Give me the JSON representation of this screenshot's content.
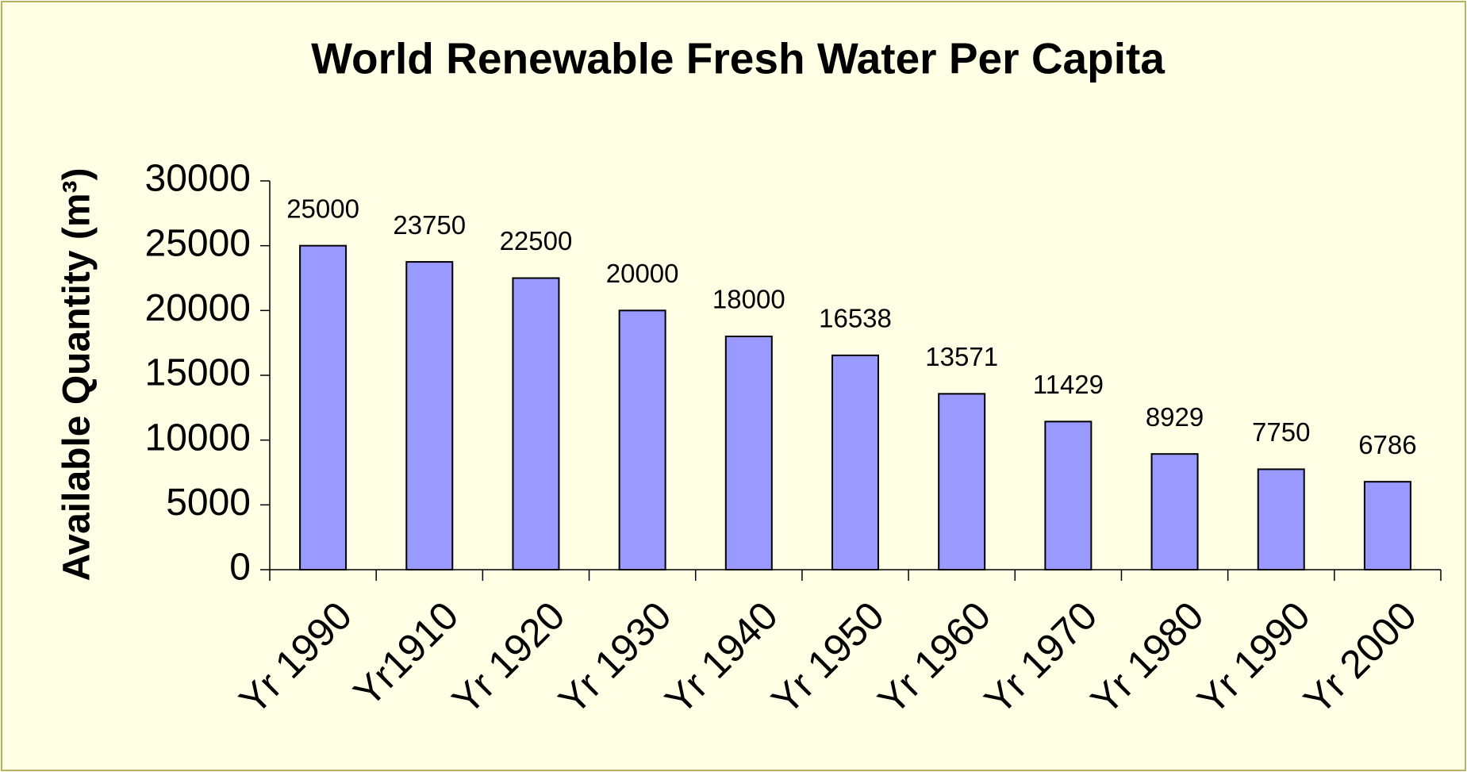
{
  "chart_data": {
    "type": "bar",
    "title": "World Renewable Fresh Water Per Capita",
    "y_label": "Available Quantity (m³)",
    "categories": [
      "Yr 1990",
      "Yr1910",
      "Yr 1920",
      "Yr 1930",
      "Yr 1940",
      "Yr 1950",
      "Yr 1960",
      "Yr 1970",
      "Yr 1980",
      "Yr 1990",
      "Yr 2000"
    ],
    "values": [
      25000,
      23750,
      22500,
      20000,
      18000,
      16538,
      13571,
      11429,
      8929,
      7750,
      6786
    ],
    "color": "#9999ff",
    "ylim": [
      0,
      30000
    ],
    "yticks": [
      0,
      5000,
      10000,
      15000,
      20000,
      25000,
      30000
    ],
    "grid": false
  }
}
